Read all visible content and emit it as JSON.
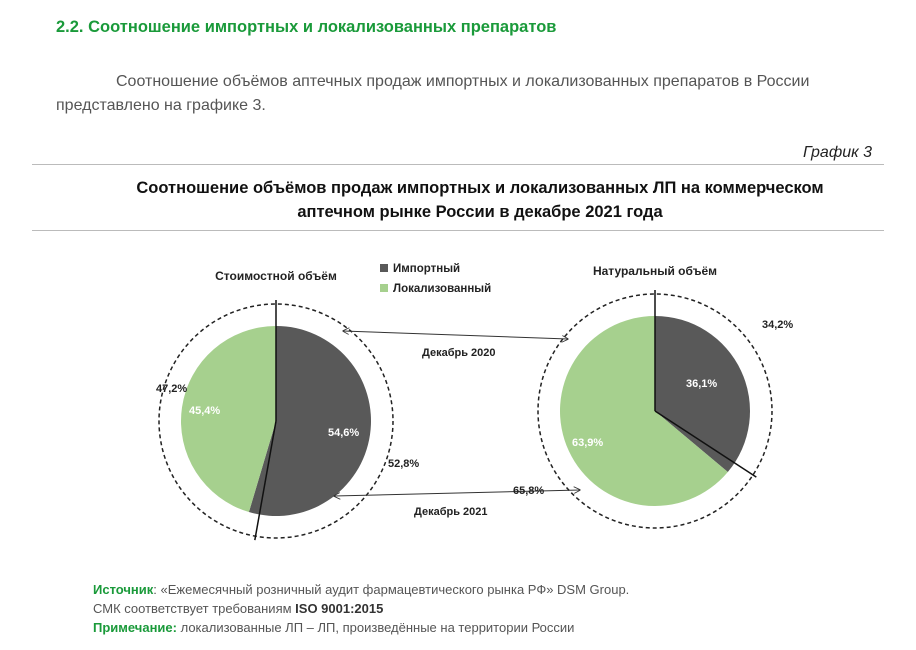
{
  "section": {
    "title": "2.2. Соотношение импортных и локализованных препаратов",
    "intro": "Соотношение объёмов аптечных продаж импортных и локализованных препаратов в России представлено на графике 3."
  },
  "graph_label": "График 3",
  "chart_title": "Соотношение объёмов продаж импортных и локализованных ЛП на коммерческом аптечном рынке России в декабре 2021 года",
  "colors": {
    "imported": "#595959",
    "localized": "#a6d08e",
    "accent": "#1a9a3a"
  },
  "chart_data": [
    {
      "type": "pie",
      "title": "Стоимостной объём",
      "legend": [
        "Импортный",
        "Локализованный"
      ],
      "inner_ring": {
        "label": "Декабрь 2021",
        "slices": [
          {
            "name": "Импортный",
            "value": 54.6,
            "label": "54,6%"
          },
          {
            "name": "Локализованный",
            "value": 45.4,
            "label": "45,4%"
          }
        ]
      },
      "outer_ring": {
        "label": "Декабрь 2020",
        "slices": [
          {
            "name": "Импортный",
            "value": 52.8,
            "label": "52,8%"
          },
          {
            "name": "Локализованный",
            "value": 47.2,
            "label": "47,2%"
          }
        ]
      }
    },
    {
      "type": "pie",
      "title": "Натуральный объём",
      "legend": [
        "Импортный",
        "Локализованный"
      ],
      "inner_ring": {
        "label": "Декабрь 2021",
        "slices": [
          {
            "name": "Импортный",
            "value": 36.1,
            "label": "36,1%"
          },
          {
            "name": "Локализованный",
            "value": 63.9,
            "label": "63,9%"
          }
        ]
      },
      "outer_ring": {
        "label": "Декабрь 2020",
        "slices": [
          {
            "name": "Импортный",
            "value": 34.2,
            "label": "34,2%"
          },
          {
            "name": "Локализованный",
            "value": 65.8,
            "label": "65,8%"
          }
        ]
      }
    }
  ],
  "footer": {
    "source_label": "Источник",
    "source_text": ": «Ежемесячный розничный аудит фармацевтического рынка РФ» DSM Group.",
    "smk_text": "СМК соответствует требованиям ",
    "smk_bold": "ISO 9001:2015",
    "note_label": "Примечание:",
    "note_text": " локализованные ЛП – ЛП, произведённые на территории России"
  }
}
